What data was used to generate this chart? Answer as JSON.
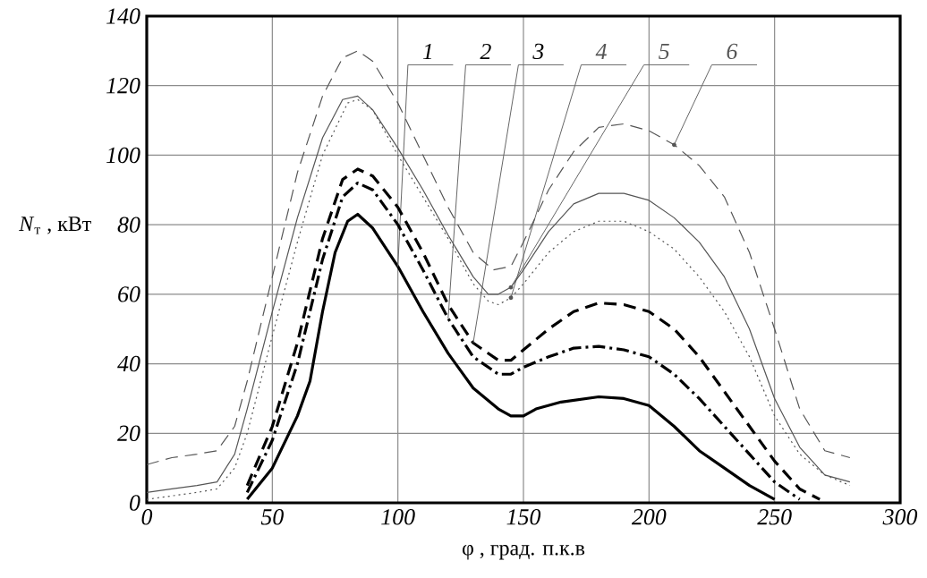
{
  "chart_data": {
    "type": "line",
    "xlabel": "φ , град. п.к.в",
    "ylabel": "*N*$_{т}$ , кВт",
    "xlim": [
      0,
      300
    ],
    "ylim": [
      0,
      140
    ],
    "xticks": [
      0,
      50,
      100,
      150,
      200,
      250,
      300
    ],
    "yticks": [
      0,
      20,
      40,
      60,
      80,
      100,
      120,
      140
    ],
    "grid": true,
    "series": [
      {
        "name": "1",
        "color": "#000000",
        "line_style": "solid",
        "x": [
          40,
          50,
          60,
          65,
          70,
          75,
          80,
          84,
          90,
          100,
          110,
          120,
          130,
          140,
          145,
          150,
          155,
          165,
          180,
          190,
          200,
          210,
          220,
          230,
          240,
          250
        ],
        "values": [
          1,
          10,
          25,
          35,
          55,
          72,
          81,
          83,
          79,
          68,
          55,
          43,
          33,
          27,
          25,
          25,
          27,
          29,
          30.5,
          30,
          28,
          22,
          15,
          10,
          5,
          1
        ]
      },
      {
        "name": "2",
        "color": "#000000",
        "line_style": "dashdot",
        "x": [
          40,
          50,
          60,
          70,
          78,
          84,
          90,
          100,
          110,
          120,
          130,
          140,
          145,
          150,
          160,
          170,
          180,
          190,
          200,
          210,
          220,
          230,
          240,
          250,
          260
        ],
        "values": [
          3,
          18,
          40,
          70,
          88,
          92,
          90,
          80,
          67,
          53,
          42,
          37,
          37,
          39,
          42,
          44.5,
          45,
          44,
          42,
          37,
          30,
          22,
          14,
          6,
          1
        ]
      },
      {
        "name": "3",
        "color": "#000000",
        "line_style": "dashed",
        "x": [
          40,
          50,
          60,
          70,
          78,
          84,
          90,
          100,
          110,
          120,
          130,
          140,
          145,
          150,
          160,
          170,
          180,
          190,
          200,
          210,
          220,
          230,
          240,
          250,
          260,
          268
        ],
        "values": [
          5,
          22,
          46,
          76,
          93,
          96,
          94,
          85,
          72,
          57,
          46,
          41,
          41,
          44,
          50,
          55,
          57.5,
          57,
          55,
          50,
          42,
          32,
          22,
          12,
          4,
          1
        ]
      },
      {
        "name": "4",
        "color": "#555555",
        "line_style": "dotted",
        "x": [
          0,
          10,
          20,
          28,
          35,
          40,
          50,
          60,
          70,
          80,
          84,
          90,
          100,
          110,
          120,
          130,
          136,
          140,
          145,
          150,
          160,
          170,
          180,
          190,
          200,
          210,
          220,
          230,
          240,
          250,
          260,
          270,
          280
        ],
        "values": [
          1,
          2,
          3,
          4,
          10,
          20,
          48,
          75,
          100,
          115,
          116,
          113,
          100,
          88,
          76,
          63,
          58,
          57,
          59,
          63,
          72,
          78,
          81,
          81,
          78,
          73,
          65,
          55,
          42,
          25,
          14,
          8,
          5
        ]
      },
      {
        "name": "5",
        "color": "#555555",
        "line_style": "solid",
        "x": [
          0,
          10,
          20,
          28,
          35,
          40,
          50,
          60,
          70,
          78,
          84,
          90,
          100,
          110,
          120,
          130,
          136,
          140,
          145,
          150,
          160,
          170,
          180,
          190,
          200,
          210,
          220,
          230,
          240,
          250,
          260,
          270,
          280
        ],
        "values": [
          3,
          4,
          5,
          6,
          14,
          27,
          55,
          82,
          105,
          116,
          117,
          113,
          102,
          90,
          77,
          65,
          60,
          60,
          62,
          67,
          78,
          86,
          89,
          89,
          87,
          82,
          75,
          65,
          50,
          30,
          16,
          8,
          6
        ]
      },
      {
        "name": "6",
        "color": "#555555",
        "line_style": "dashed",
        "x": [
          0,
          10,
          20,
          28,
          35,
          40,
          50,
          60,
          70,
          78,
          84,
          90,
          100,
          110,
          120,
          130,
          138,
          145,
          150,
          160,
          170,
          180,
          190,
          200,
          210,
          220,
          230,
          240,
          250,
          260,
          270,
          280
        ],
        "values": [
          11,
          13,
          14,
          15,
          22,
          35,
          65,
          95,
          117,
          128,
          130,
          127,
          115,
          100,
          85,
          72,
          67,
          68,
          75,
          90,
          101,
          108,
          109,
          107,
          103,
          97,
          88,
          72,
          50,
          27,
          15,
          13
        ]
      }
    ]
  }
}
